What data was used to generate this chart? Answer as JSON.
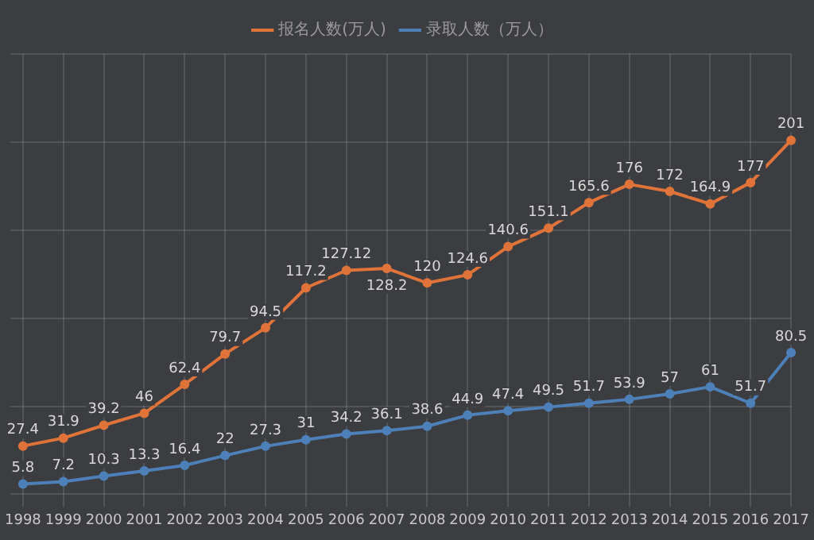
{
  "chart_data": {
    "type": "line",
    "categories": [
      "1998",
      "1999",
      "2000",
      "2001",
      "2002",
      "2003",
      "2004",
      "2005",
      "2006",
      "2007",
      "2008",
      "2009",
      "2010",
      "2011",
      "2012",
      "2013",
      "2014",
      "2015",
      "2016",
      "2017"
    ],
    "series": [
      {
        "name": "报名人数(万人)",
        "color": "#e0733a",
        "values": [
          27.4,
          31.9,
          39.2,
          46,
          62.4,
          79.7,
          94.5,
          117.2,
          127.12,
          128.2,
          120,
          124.6,
          140.6,
          151.1,
          165.6,
          176,
          172,
          164.9,
          177,
          201
        ]
      },
      {
        "name": "录取人数（万人）",
        "color": "#4d80b8",
        "values": [
          5.8,
          7.2,
          10.3,
          13.3,
          16.4,
          22,
          27.3,
          31,
          34.2,
          36.1,
          38.6,
          44.9,
          47.4,
          49.5,
          51.7,
          53.9,
          57,
          61,
          51.7,
          80.5
        ]
      }
    ],
    "data_labels": true,
    "legend": "top",
    "grid": true,
    "tick_labels": "x",
    "marker": "circle",
    "line_style": "solid"
  }
}
